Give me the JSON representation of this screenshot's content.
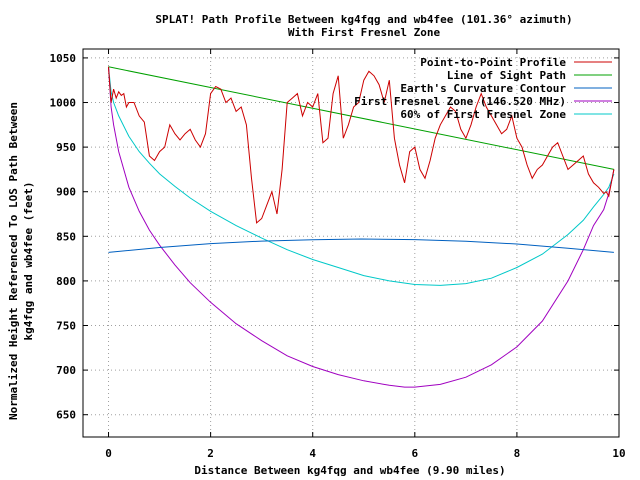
{
  "chart_data": {
    "type": "line",
    "title": "SPLAT! Path Profile Between kg4fqg and wb4fee (101.36° azimuth)",
    "subtitle": "With First Fresnel Zone",
    "xlabel": "Distance Between kg4fqg and wb4fee (9.90 miles)",
    "ylabel_line1": "Normalized Height Referenced To LOS Path Between",
    "ylabel_line2": "kg4fqg and wb4fee (feet)",
    "xlim": [
      -0.5,
      10
    ],
    "ylim": [
      625,
      1060
    ],
    "x_ticks": [
      0,
      2,
      4,
      6,
      8,
      10
    ],
    "y_ticks": [
      650,
      700,
      750,
      800,
      850,
      900,
      950,
      1000,
      1050
    ],
    "x_tick_labels": [
      "0",
      "2",
      "4",
      "6",
      "8",
      "10"
    ],
    "y_tick_labels": [
      "650",
      "700",
      "750",
      "800",
      "850",
      "900",
      "950",
      "1000",
      "1050"
    ],
    "grid": true,
    "legend_position": "top-right",
    "series": [
      {
        "name": "Point-to-Point Profile",
        "color": "#cc0000",
        "x": [
          0,
          0.05,
          0.1,
          0.15,
          0.2,
          0.25,
          0.3,
          0.35,
          0.4,
          0.5,
          0.6,
          0.7,
          0.8,
          0.9,
          1.0,
          1.1,
          1.2,
          1.3,
          1.4,
          1.5,
          1.6,
          1.7,
          1.8,
          1.9,
          2.0,
          2.1,
          2.2,
          2.3,
          2.4,
          2.5,
          2.6,
          2.7,
          2.8,
          2.9,
          3.0,
          3.1,
          3.2,
          3.3,
          3.4,
          3.5,
          3.6,
          3.7,
          3.8,
          3.9,
          4.0,
          4.1,
          4.2,
          4.3,
          4.4,
          4.5,
          4.6,
          4.7,
          4.8,
          4.9,
          5.0,
          5.1,
          5.2,
          5.3,
          5.4,
          5.5,
          5.6,
          5.7,
          5.8,
          5.9,
          6.0,
          6.1,
          6.2,
          6.3,
          6.4,
          6.5,
          6.6,
          6.7,
          6.8,
          6.9,
          7.0,
          7.1,
          7.2,
          7.3,
          7.4,
          7.5,
          7.6,
          7.7,
          7.8,
          7.9,
          8.0,
          8.1,
          8.2,
          8.3,
          8.4,
          8.5,
          8.6,
          8.7,
          8.8,
          8.9,
          9.0,
          9.1,
          9.2,
          9.3,
          9.4,
          9.5,
          9.6,
          9.7,
          9.75,
          9.8,
          9.85,
          9.9
        ],
        "y": [
          1040,
          1000,
          1015,
          1005,
          1012,
          1008,
          1010,
          995,
          1000,
          1000,
          985,
          978,
          940,
          935,
          945,
          950,
          975,
          965,
          958,
          965,
          970,
          958,
          950,
          965,
          1010,
          1018,
          1015,
          1000,
          1005,
          990,
          995,
          975,
          915,
          865,
          870,
          885,
          900,
          875,
          925,
          1000,
          1005,
          1010,
          985,
          1000,
          995,
          1010,
          955,
          960,
          1010,
          1030,
          960,
          975,
          995,
          1000,
          1025,
          1035,
          1030,
          1020,
          1000,
          1025,
          960,
          930,
          910,
          945,
          950,
          925,
          915,
          935,
          960,
          975,
          985,
          995,
          990,
          970,
          960,
          975,
          995,
          1010,
          995,
          985,
          975,
          965,
          970,
          985,
          960,
          950,
          930,
          915,
          925,
          930,
          940,
          950,
          955,
          940,
          925,
          930,
          935,
          940,
          920,
          910,
          905,
          898,
          900,
          895,
          910,
          925
        ]
      },
      {
        "name": "Line of Sight Path",
        "color": "#00a000",
        "x": [
          0,
          9.9
        ],
        "y": [
          1040,
          925
        ]
      },
      {
        "name": "Earth's Curvature Contour",
        "color": "#0060c0",
        "x": [
          0,
          1,
          2,
          3,
          4,
          4.95,
          6,
          7,
          8,
          9,
          9.9
        ],
        "y": [
          832,
          837.5,
          841.8,
          844.6,
          846.2,
          847,
          846.3,
          844.4,
          841.4,
          836.7,
          832
        ]
      },
      {
        "name": "First Fresnel Zone (146.520 MHz)",
        "color": "#a000c0",
        "x": [
          0,
          0.05,
          0.1,
          0.2,
          0.4,
          0.6,
          0.8,
          1.0,
          1.3,
          1.6,
          2.0,
          2.5,
          3.0,
          3.5,
          4.0,
          4.5,
          5.0,
          5.5,
          5.8,
          6.0,
          6.5,
          7.0,
          7.5,
          8.0,
          8.5,
          9.0,
          9.3,
          9.5,
          9.7,
          9.8,
          9.85,
          9.9
        ],
        "y": [
          1040,
          995,
          975,
          945,
          905,
          878,
          857,
          840,
          818,
          798,
          776,
          752,
          733,
          716,
          704,
          695,
          688,
          683,
          681,
          681,
          684,
          692,
          706,
          726,
          755,
          800,
          835,
          862,
          880,
          898,
          910,
          925
        ]
      },
      {
        "name": "60% of First Fresnel Zone",
        "color": "#00c8c8",
        "x": [
          0,
          0.05,
          0.1,
          0.2,
          0.4,
          0.6,
          0.8,
          1.0,
          1.3,
          1.6,
          2.0,
          2.5,
          3.0,
          3.5,
          4.0,
          4.5,
          5.0,
          5.5,
          6.0,
          6.5,
          7.0,
          7.5,
          8.0,
          8.5,
          9.0,
          9.3,
          9.5,
          9.7,
          9.8,
          9.9
        ],
        "y": [
          1040,
          1012,
          1000,
          985,
          962,
          945,
          932,
          920,
          906,
          893,
          878,
          862,
          848,
          835,
          824,
          815,
          806,
          800,
          796,
          795,
          797,
          803,
          815,
          830,
          852,
          868,
          883,
          897,
          905,
          920
        ]
      }
    ]
  }
}
